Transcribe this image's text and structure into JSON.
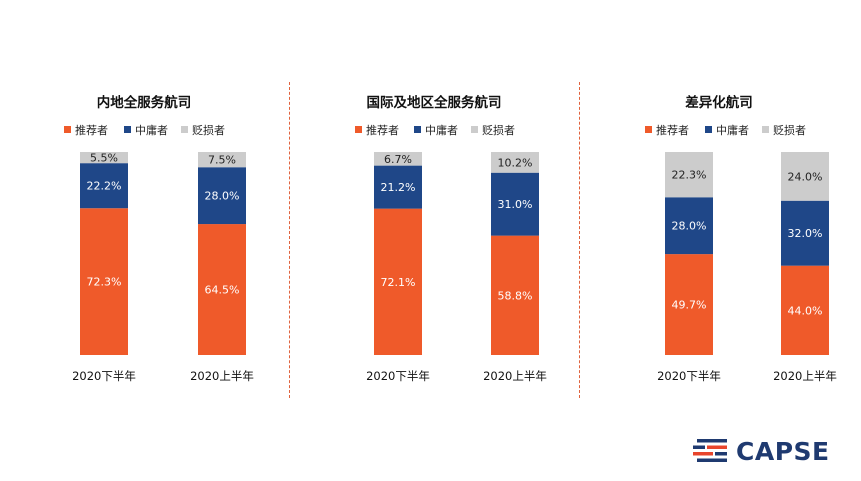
{
  "chart_data": [
    {
      "type": "bar",
      "stacked": true,
      "percent": true,
      "title": "内地全服务航司",
      "categories": [
        "2020下半年",
        "2020上半年"
      ],
      "series": [
        {
          "name": "推荐者",
          "values": [
            72.3,
            64.5
          ],
          "labels": [
            "72.3%",
            "64.5%"
          ]
        },
        {
          "name": "中庸者",
          "values": [
            22.2,
            28.0
          ],
          "labels": [
            "22.2%",
            "28.0%"
          ]
        },
        {
          "name": "贬损者",
          "values": [
            5.5,
            7.5
          ],
          "labels": [
            "5.5%",
            "7.5%"
          ]
        }
      ],
      "ylim": [
        0,
        100
      ],
      "legend": "top"
    },
    {
      "type": "bar",
      "stacked": true,
      "percent": true,
      "title": "国际及地区全服务航司",
      "categories": [
        "2020下半年",
        "2020上半年"
      ],
      "series": [
        {
          "name": "推荐者",
          "values": [
            72.1,
            58.8
          ],
          "labels": [
            "72.1%",
            "58.8%"
          ]
        },
        {
          "name": "中庸者",
          "values": [
            21.2,
            31.0
          ],
          "labels": [
            "21.2%",
            "31.0%"
          ]
        },
        {
          "name": "贬损者",
          "values": [
            6.7,
            10.2
          ],
          "labels": [
            "6.7%",
            "10.2%"
          ]
        }
      ],
      "ylim": [
        0,
        100
      ],
      "legend": "top"
    },
    {
      "type": "bar",
      "stacked": true,
      "percent": true,
      "title": "差异化航司",
      "categories": [
        "2020下半年",
        "2020上半年"
      ],
      "series": [
        {
          "name": "推荐者",
          "values": [
            49.7,
            44.0
          ],
          "labels": [
            "49.7%",
            "44.0%"
          ]
        },
        {
          "name": "中庸者",
          "values": [
            28.0,
            32.0
          ],
          "labels": [
            "28.0%",
            "32.0%"
          ]
        },
        {
          "name": "贬损者",
          "values": [
            22.3,
            24.0
          ],
          "labels": [
            "22.3%",
            "24.0%"
          ]
        }
      ],
      "ylim": [
        0,
        100
      ],
      "legend": "top"
    }
  ],
  "colors": {
    "promoter": "#ef5a2a",
    "passive": "#1f4788",
    "detractor": "#cccccc",
    "divider": "#e0633e",
    "logo_blue": "#1f3a70",
    "logo_red": "#e8452c"
  },
  "logo": {
    "text": "CAPSE"
  }
}
